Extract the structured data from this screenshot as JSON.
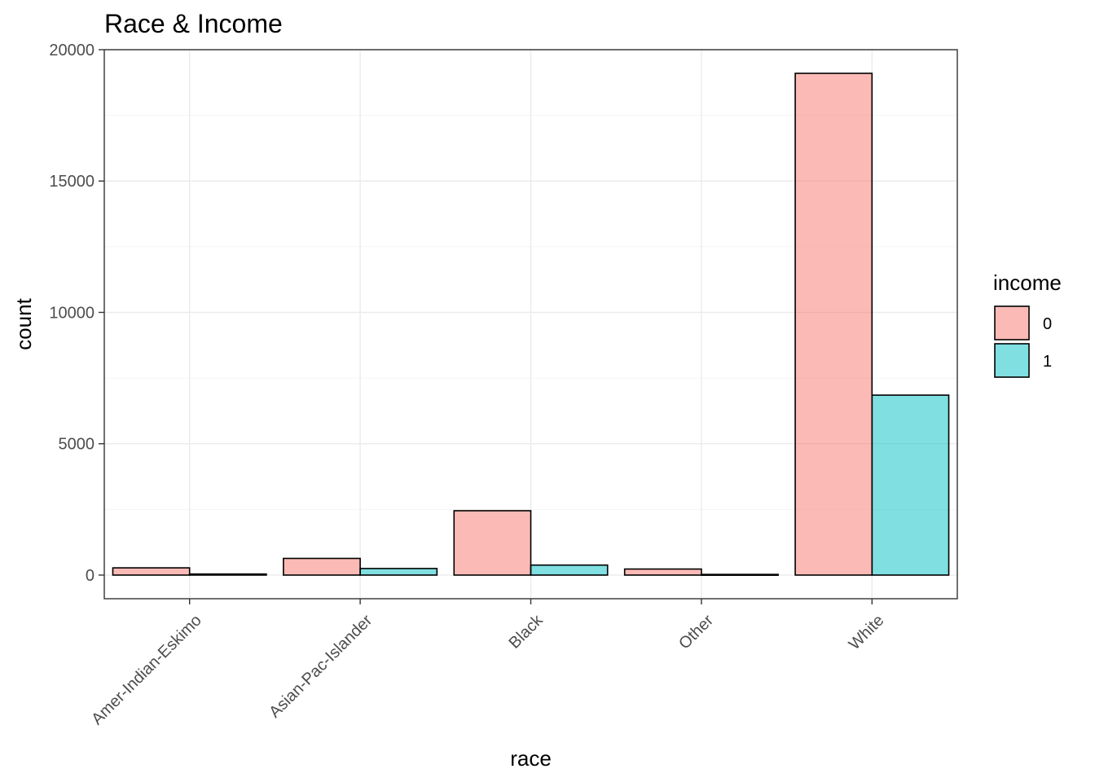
{
  "chart_data": {
    "type": "bar",
    "title": "Race & Income",
    "xlabel": "race",
    "ylabel": "count",
    "categories": [
      "Amer-Indian-Eskimo",
      "Asian-Pac-Islander",
      "Black",
      "Other",
      "White"
    ],
    "series": [
      {
        "name": "0",
        "values": [
          275,
          635,
          2450,
          230,
          19100
        ],
        "color": "#F8766D"
      },
      {
        "name": "1",
        "values": [
          40,
          250,
          380,
          25,
          6850
        ],
        "color": "#00BFC4"
      }
    ],
    "ylim": [
      -900,
      20000
    ],
    "yticks": [
      0,
      5000,
      10000,
      15000,
      20000
    ],
    "ytick_labels": [
      "0",
      "5000",
      "10000",
      "15000",
      "20000"
    ],
    "grid": true,
    "legend": {
      "title": "income",
      "position": "right"
    }
  }
}
